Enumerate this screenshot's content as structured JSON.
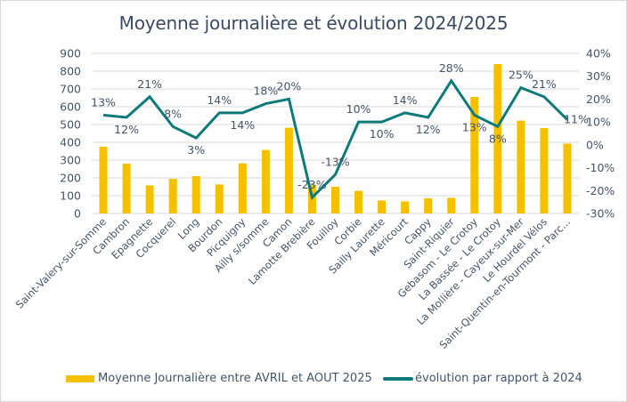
{
  "chart_data": {
    "type": "bar+line",
    "title": "Moyenne journalière et évolution 2024/2025",
    "categories": [
      "Saint-Valery-sur-Somme",
      "Cambron",
      "Epagnette",
      "Cocquerel",
      "Long",
      "Bourdon",
      "Picquigny",
      "Ailly s/somme",
      "Camon",
      "Lamotte Brebière",
      "Fouilloy",
      "Corbie",
      "Sailly Laurette",
      "Méricourt",
      "Cappy",
      "Saint-Riquier",
      "Gebasom - Le Crotoy",
      "La Bassée - Le Crotoy",
      "La Mollière - Cayeux-sur-Mer",
      "Le Hourdel Vélos",
      "Saint-Quentin-en-Tourmont - Parc..."
    ],
    "series": [
      {
        "name": "Moyenne Journalière entre AVRIL et AOUT 2025",
        "type": "bar",
        "axis": "left",
        "color": "#f5c000",
        "values": [
          375,
          280,
          158,
          195,
          210,
          163,
          282,
          357,
          482,
          162,
          150,
          127,
          73,
          68,
          85,
          88,
          655,
          840,
          522,
          480,
          393
        ]
      },
      {
        "name": "évolution par rapport à 2024",
        "type": "line",
        "axis": "right",
        "color": "#0e7a7a",
        "values": [
          13,
          12,
          21,
          8,
          3,
          14,
          14,
          18,
          20,
          -23,
          -13,
          10,
          10,
          14,
          12,
          28,
          13,
          8,
          25,
          21,
          11
        ],
        "labels": [
          "13%",
          "12%",
          "21%",
          "8%",
          "3%",
          "14%",
          "14%",
          "18%",
          "20%",
          "-23%",
          "-13%",
          "10%",
          "10%",
          "14%",
          "12%",
          "28%",
          "13%",
          "8%",
          "25%",
          "21%",
          "11%"
        ]
      }
    ],
    "left_axis": {
      "min": 0,
      "max": 900,
      "step": 100,
      "ticks": [
        "0",
        "100",
        "200",
        "300",
        "400",
        "500",
        "600",
        "700",
        "800",
        "900"
      ]
    },
    "right_axis": {
      "min": -30,
      "max": 40,
      "step": 10,
      "ticks": [
        "-30%",
        "-20%",
        "-10%",
        "0%",
        "10%",
        "20%",
        "30%",
        "40%"
      ]
    },
    "grid": true,
    "legend_position": "bottom"
  }
}
